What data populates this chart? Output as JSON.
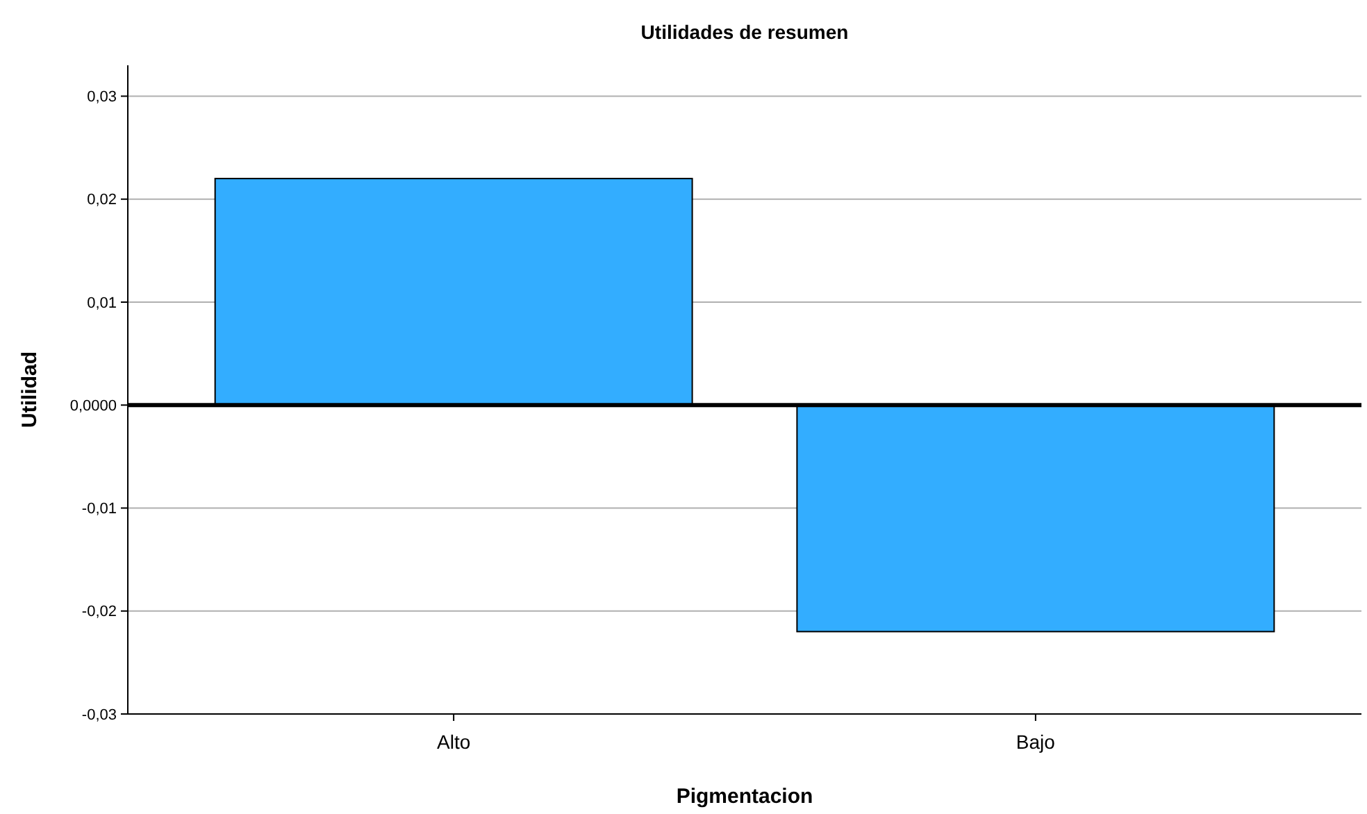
{
  "chart_data": {
    "type": "bar",
    "title": "Utilidades de resumen",
    "xlabel": "Pigmentacion",
    "ylabel": "Utilidad",
    "categories": [
      "Alto",
      "Bajo"
    ],
    "values": [
      0.022,
      -0.022
    ],
    "color": "#33adff",
    "ylim": [
      -0.03,
      0.033
    ],
    "yticks": [
      {
        "value": 0.03,
        "label": "0,03"
      },
      {
        "value": 0.02,
        "label": "0,02"
      },
      {
        "value": 0.01,
        "label": "0,01"
      },
      {
        "value": 0,
        "label": "0,0000"
      },
      {
        "value": -0.01,
        "label": "-0,01"
      },
      {
        "value": -0.02,
        "label": "-0,02"
      },
      {
        "value": -0.03,
        "label": "-0,03"
      }
    ],
    "grid": "y",
    "ref_lines": [
      {
        "axis": "y",
        "value": 0,
        "color": "#000000"
      }
    ]
  }
}
